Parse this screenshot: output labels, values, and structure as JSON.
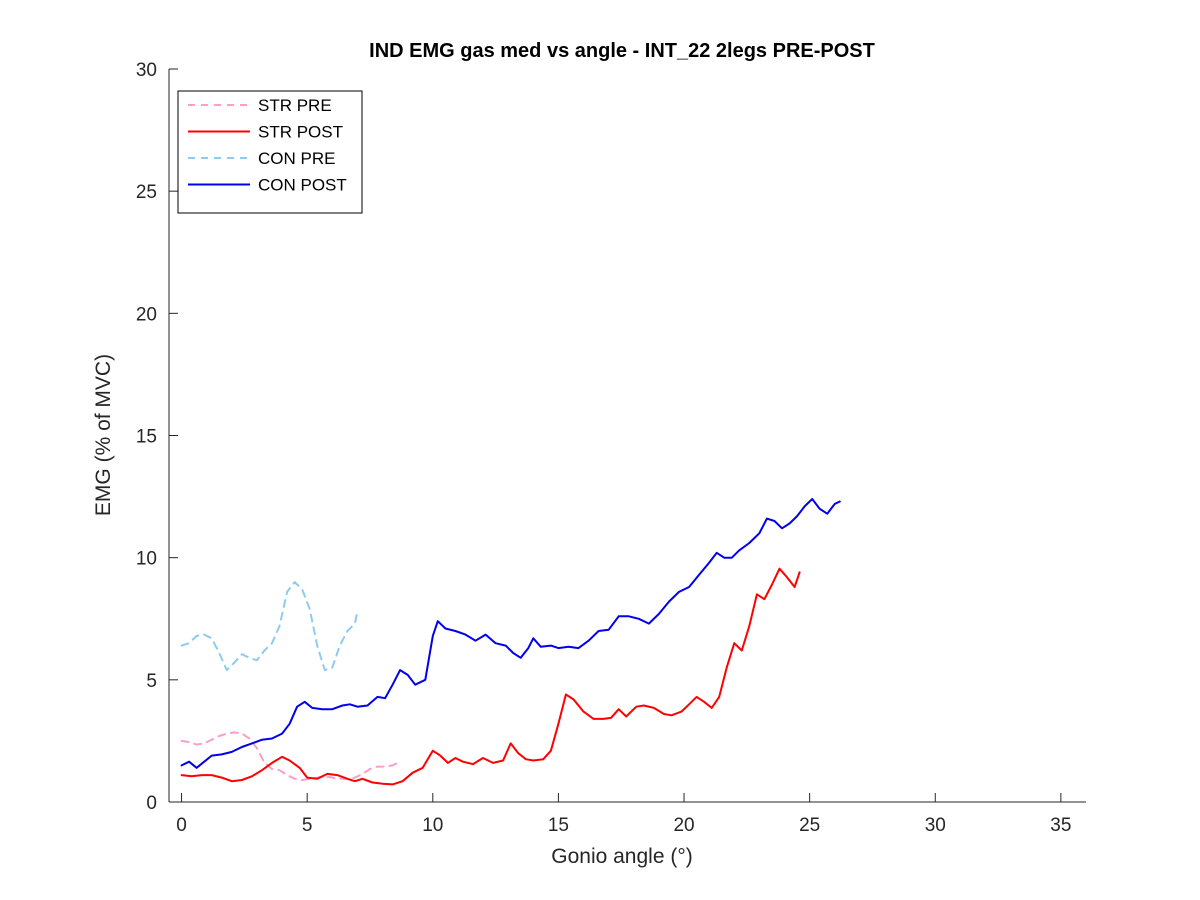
{
  "chart_data": {
    "type": "line",
    "title": "IND EMG gas med vs angle - INT_22 2legs PRE-POST",
    "xlabel": "Gonio angle (°)",
    "ylabel": "EMG (% of MVC)",
    "xlim": [
      -0.5,
      36
    ],
    "ylim": [
      0,
      30
    ],
    "xticks": [
      0,
      5,
      10,
      15,
      20,
      25,
      30,
      35
    ],
    "yticks": [
      0,
      5,
      10,
      15,
      20,
      25,
      30
    ],
    "grid": false,
    "legend_position": "top-left",
    "series": [
      {
        "name": "STR PRE",
        "color": "#ff9ec4",
        "style": "dashed",
        "points": [
          [
            0,
            2.5
          ],
          [
            0.3,
            2.45
          ],
          [
            0.6,
            2.35
          ],
          [
            0.9,
            2.4
          ],
          [
            1.2,
            2.55
          ],
          [
            1.5,
            2.7
          ],
          [
            1.8,
            2.8
          ],
          [
            2.1,
            2.85
          ],
          [
            2.4,
            2.8
          ],
          [
            2.7,
            2.6
          ],
          [
            3.0,
            2.2
          ],
          [
            3.3,
            1.6
          ],
          [
            3.6,
            1.35
          ],
          [
            3.9,
            1.3
          ],
          [
            4.2,
            1.1
          ],
          [
            4.5,
            0.95
          ],
          [
            4.8,
            0.9
          ],
          [
            5.1,
            0.95
          ],
          [
            5.4,
            1.0
          ],
          [
            5.7,
            1.05
          ],
          [
            6.0,
            1.0
          ],
          [
            6.3,
            0.95
          ],
          [
            6.6,
            0.95
          ],
          [
            6.9,
            1.0
          ],
          [
            7.2,
            1.15
          ],
          [
            7.5,
            1.35
          ],
          [
            7.8,
            1.45
          ],
          [
            8.1,
            1.45
          ],
          [
            8.4,
            1.5
          ],
          [
            8.6,
            1.6
          ]
        ]
      },
      {
        "name": "STR POST",
        "color": "#ff0000",
        "style": "solid",
        "points": [
          [
            0,
            1.1
          ],
          [
            0.4,
            1.05
          ],
          [
            0.8,
            1.1
          ],
          [
            1.2,
            1.1
          ],
          [
            1.6,
            1.0
          ],
          [
            2.0,
            0.85
          ],
          [
            2.4,
            0.9
          ],
          [
            2.8,
            1.05
          ],
          [
            3.2,
            1.3
          ],
          [
            3.6,
            1.6
          ],
          [
            4.0,
            1.85
          ],
          [
            4.3,
            1.7
          ],
          [
            4.7,
            1.4
          ],
          [
            5.0,
            1.0
          ],
          [
            5.4,
            0.95
          ],
          [
            5.8,
            1.15
          ],
          [
            6.2,
            1.1
          ],
          [
            6.6,
            0.95
          ],
          [
            6.9,
            0.85
          ],
          [
            7.2,
            0.95
          ],
          [
            7.6,
            0.8
          ],
          [
            8.0,
            0.75
          ],
          [
            8.4,
            0.72
          ],
          [
            8.8,
            0.85
          ],
          [
            9.2,
            1.2
          ],
          [
            9.6,
            1.4
          ],
          [
            10.0,
            2.1
          ],
          [
            10.3,
            1.9
          ],
          [
            10.6,
            1.6
          ],
          [
            10.9,
            1.8
          ],
          [
            11.2,
            1.65
          ],
          [
            11.6,
            1.55
          ],
          [
            12.0,
            1.8
          ],
          [
            12.4,
            1.6
          ],
          [
            12.8,
            1.7
          ],
          [
            13.1,
            2.4
          ],
          [
            13.4,
            2.0
          ],
          [
            13.7,
            1.75
          ],
          [
            14.0,
            1.7
          ],
          [
            14.4,
            1.75
          ],
          [
            14.7,
            2.1
          ],
          [
            15.0,
            3.2
          ],
          [
            15.3,
            4.4
          ],
          [
            15.6,
            4.2
          ],
          [
            16.0,
            3.7
          ],
          [
            16.4,
            3.4
          ],
          [
            16.8,
            3.4
          ],
          [
            17.1,
            3.45
          ],
          [
            17.4,
            3.8
          ],
          [
            17.7,
            3.5
          ],
          [
            18.1,
            3.9
          ],
          [
            18.4,
            3.95
          ],
          [
            18.8,
            3.85
          ],
          [
            19.2,
            3.6
          ],
          [
            19.5,
            3.55
          ],
          [
            19.9,
            3.7
          ],
          [
            20.2,
            4.0
          ],
          [
            20.5,
            4.3
          ],
          [
            20.8,
            4.1
          ],
          [
            21.1,
            3.85
          ],
          [
            21.4,
            4.3
          ],
          [
            21.7,
            5.5
          ],
          [
            22.0,
            6.5
          ],
          [
            22.3,
            6.2
          ],
          [
            22.6,
            7.2
          ],
          [
            22.9,
            8.5
          ],
          [
            23.2,
            8.3
          ],
          [
            23.5,
            8.9
          ],
          [
            23.8,
            9.55
          ],
          [
            24.1,
            9.2
          ],
          [
            24.4,
            8.8
          ],
          [
            24.6,
            9.4
          ]
        ]
      },
      {
        "name": "CON PRE",
        "color": "#8ecbf0",
        "style": "dashed",
        "points": [
          [
            0,
            6.4
          ],
          [
            0.3,
            6.5
          ],
          [
            0.6,
            6.8
          ],
          [
            0.9,
            6.85
          ],
          [
            1.2,
            6.7
          ],
          [
            1.5,
            6.1
          ],
          [
            1.8,
            5.4
          ],
          [
            2.1,
            5.7
          ],
          [
            2.4,
            6.05
          ],
          [
            2.7,
            5.9
          ],
          [
            3.0,
            5.8
          ],
          [
            3.3,
            6.2
          ],
          [
            3.6,
            6.5
          ],
          [
            3.9,
            7.2
          ],
          [
            4.2,
            8.6
          ],
          [
            4.5,
            9.0
          ],
          [
            4.8,
            8.7
          ],
          [
            5.1,
            7.9
          ],
          [
            5.4,
            6.4
          ],
          [
            5.7,
            5.4
          ],
          [
            6.0,
            5.5
          ],
          [
            6.3,
            6.4
          ],
          [
            6.6,
            7.0
          ],
          [
            6.9,
            7.3
          ],
          [
            7.0,
            7.8
          ]
        ]
      },
      {
        "name": "CON POST",
        "color": "#0000ee",
        "style": "solid",
        "points": [
          [
            0,
            1.5
          ],
          [
            0.3,
            1.65
          ],
          [
            0.6,
            1.4
          ],
          [
            0.9,
            1.65
          ],
          [
            1.2,
            1.9
          ],
          [
            1.6,
            1.95
          ],
          [
            2.0,
            2.05
          ],
          [
            2.4,
            2.25
          ],
          [
            2.8,
            2.4
          ],
          [
            3.2,
            2.55
          ],
          [
            3.6,
            2.6
          ],
          [
            4.0,
            2.8
          ],
          [
            4.3,
            3.2
          ],
          [
            4.6,
            3.9
          ],
          [
            4.9,
            4.1
          ],
          [
            5.2,
            3.85
          ],
          [
            5.6,
            3.8
          ],
          [
            6.0,
            3.8
          ],
          [
            6.4,
            3.95
          ],
          [
            6.7,
            4.0
          ],
          [
            7.0,
            3.9
          ],
          [
            7.4,
            3.95
          ],
          [
            7.8,
            4.3
          ],
          [
            8.1,
            4.25
          ],
          [
            8.4,
            4.8
          ],
          [
            8.7,
            5.4
          ],
          [
            9.0,
            5.2
          ],
          [
            9.3,
            4.8
          ],
          [
            9.7,
            5.0
          ],
          [
            10.0,
            6.8
          ],
          [
            10.2,
            7.4
          ],
          [
            10.5,
            7.1
          ],
          [
            10.9,
            7.0
          ],
          [
            11.3,
            6.85
          ],
          [
            11.7,
            6.6
          ],
          [
            12.1,
            6.85
          ],
          [
            12.5,
            6.5
          ],
          [
            12.9,
            6.4
          ],
          [
            13.2,
            6.1
          ],
          [
            13.5,
            5.9
          ],
          [
            13.8,
            6.3
          ],
          [
            14.0,
            6.7
          ],
          [
            14.3,
            6.35
          ],
          [
            14.7,
            6.4
          ],
          [
            15.0,
            6.3
          ],
          [
            15.4,
            6.35
          ],
          [
            15.8,
            6.3
          ],
          [
            16.2,
            6.6
          ],
          [
            16.6,
            7.0
          ],
          [
            17.0,
            7.05
          ],
          [
            17.4,
            7.6
          ],
          [
            17.8,
            7.6
          ],
          [
            18.2,
            7.5
          ],
          [
            18.6,
            7.3
          ],
          [
            19.0,
            7.7
          ],
          [
            19.4,
            8.2
          ],
          [
            19.8,
            8.6
          ],
          [
            20.2,
            8.8
          ],
          [
            20.6,
            9.3
          ],
          [
            21.0,
            9.8
          ],
          [
            21.3,
            10.2
          ],
          [
            21.6,
            10.0
          ],
          [
            21.9,
            10.0
          ],
          [
            22.2,
            10.3
          ],
          [
            22.6,
            10.6
          ],
          [
            23.0,
            11.0
          ],
          [
            23.3,
            11.6
          ],
          [
            23.6,
            11.5
          ],
          [
            23.9,
            11.2
          ],
          [
            24.2,
            11.4
          ],
          [
            24.5,
            11.7
          ],
          [
            24.8,
            12.1
          ],
          [
            25.1,
            12.4
          ],
          [
            25.4,
            12.0
          ],
          [
            25.7,
            11.8
          ],
          [
            26.0,
            12.2
          ],
          [
            26.2,
            12.3
          ]
        ]
      }
    ]
  }
}
